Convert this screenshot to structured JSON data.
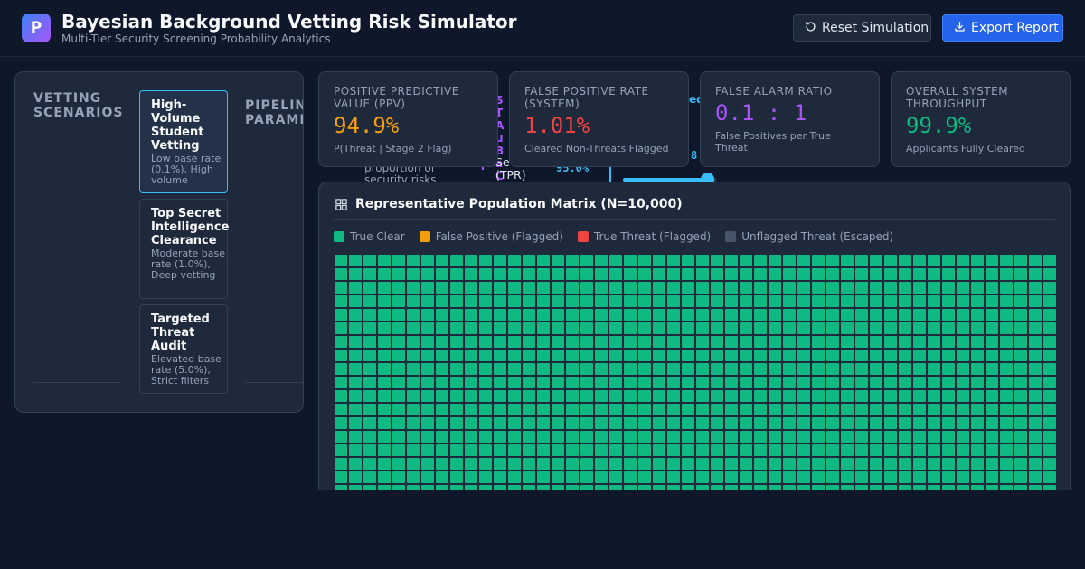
{
  "app": {
    "logo_letter": "P",
    "title": "Bayesian Background Vetting Risk Simulator",
    "subtitle": "Multi-Tier Security Screening Probability Analytics"
  },
  "toolbar": {
    "reset_label": "Reset Simulation",
    "export_label": "Export Report"
  },
  "scenarios": {
    "heading": "VETTING SCENARIOS",
    "items": [
      {
        "title": "High-Volume Student Vetting",
        "desc": "Low base rate (0.1%), High volume",
        "active": true
      },
      {
        "title": "Top Secret Intelligence Clearance",
        "desc": "Moderate base rate (1.0%), Deep vetting",
        "active": false
      },
      {
        "title": "Targeted Threat Audit",
        "desc": "Elevated base rate (5.0%), Strict filters",
        "active": false
      }
    ]
  },
  "pipeline": {
    "heading": "PIPELINE PARAMETERS",
    "base_rate_desc": "proportion of security risks",
    "stage_fragment": "ST Au Ba Ch",
    "tpr_label_fragment": "Se (TPR)",
    "tpr_value": "95.0%",
    "spec_value_fragment": "8",
    "fragment_ed": "ed",
    "slider_fraction": 0.9
  },
  "metrics": {
    "ppv": {
      "label": "POSITIVE PREDICTIVE VALUE (PPV)",
      "value": "94.9%",
      "sub": "P(Threat | Stage 2 Flag)",
      "color": "#f59e0b"
    },
    "fpr": {
      "label": "FALSE POSITIVE RATE (SYSTEM)",
      "value": "1.01%",
      "sub": "Cleared Non-Threats Flagged",
      "color": "#ef4444"
    },
    "far": {
      "label": "FALSE ALARM RATIO",
      "value": "0.1 : 1",
      "sub": "False Positives per True Threat",
      "color": "#a855f7"
    },
    "throughput": {
      "label": "OVERALL SYSTEM THROUGHPUT",
      "value": "99.9%",
      "sub": "Applicants Fully Cleared",
      "color": "#10b981"
    }
  },
  "matrix": {
    "title": "Representative Population Matrix (N=10,000)",
    "legend": [
      {
        "label": "True Clear",
        "color": "#10b981"
      },
      {
        "label": "False Positive (Flagged)",
        "color": "#f59e0b"
      },
      {
        "label": "True Threat (Flagged)",
        "color": "#ef4444"
      },
      {
        "label": "Unflagged Threat (Escaped)",
        "color": "#475569"
      }
    ],
    "cell_color": "#10b981"
  }
}
